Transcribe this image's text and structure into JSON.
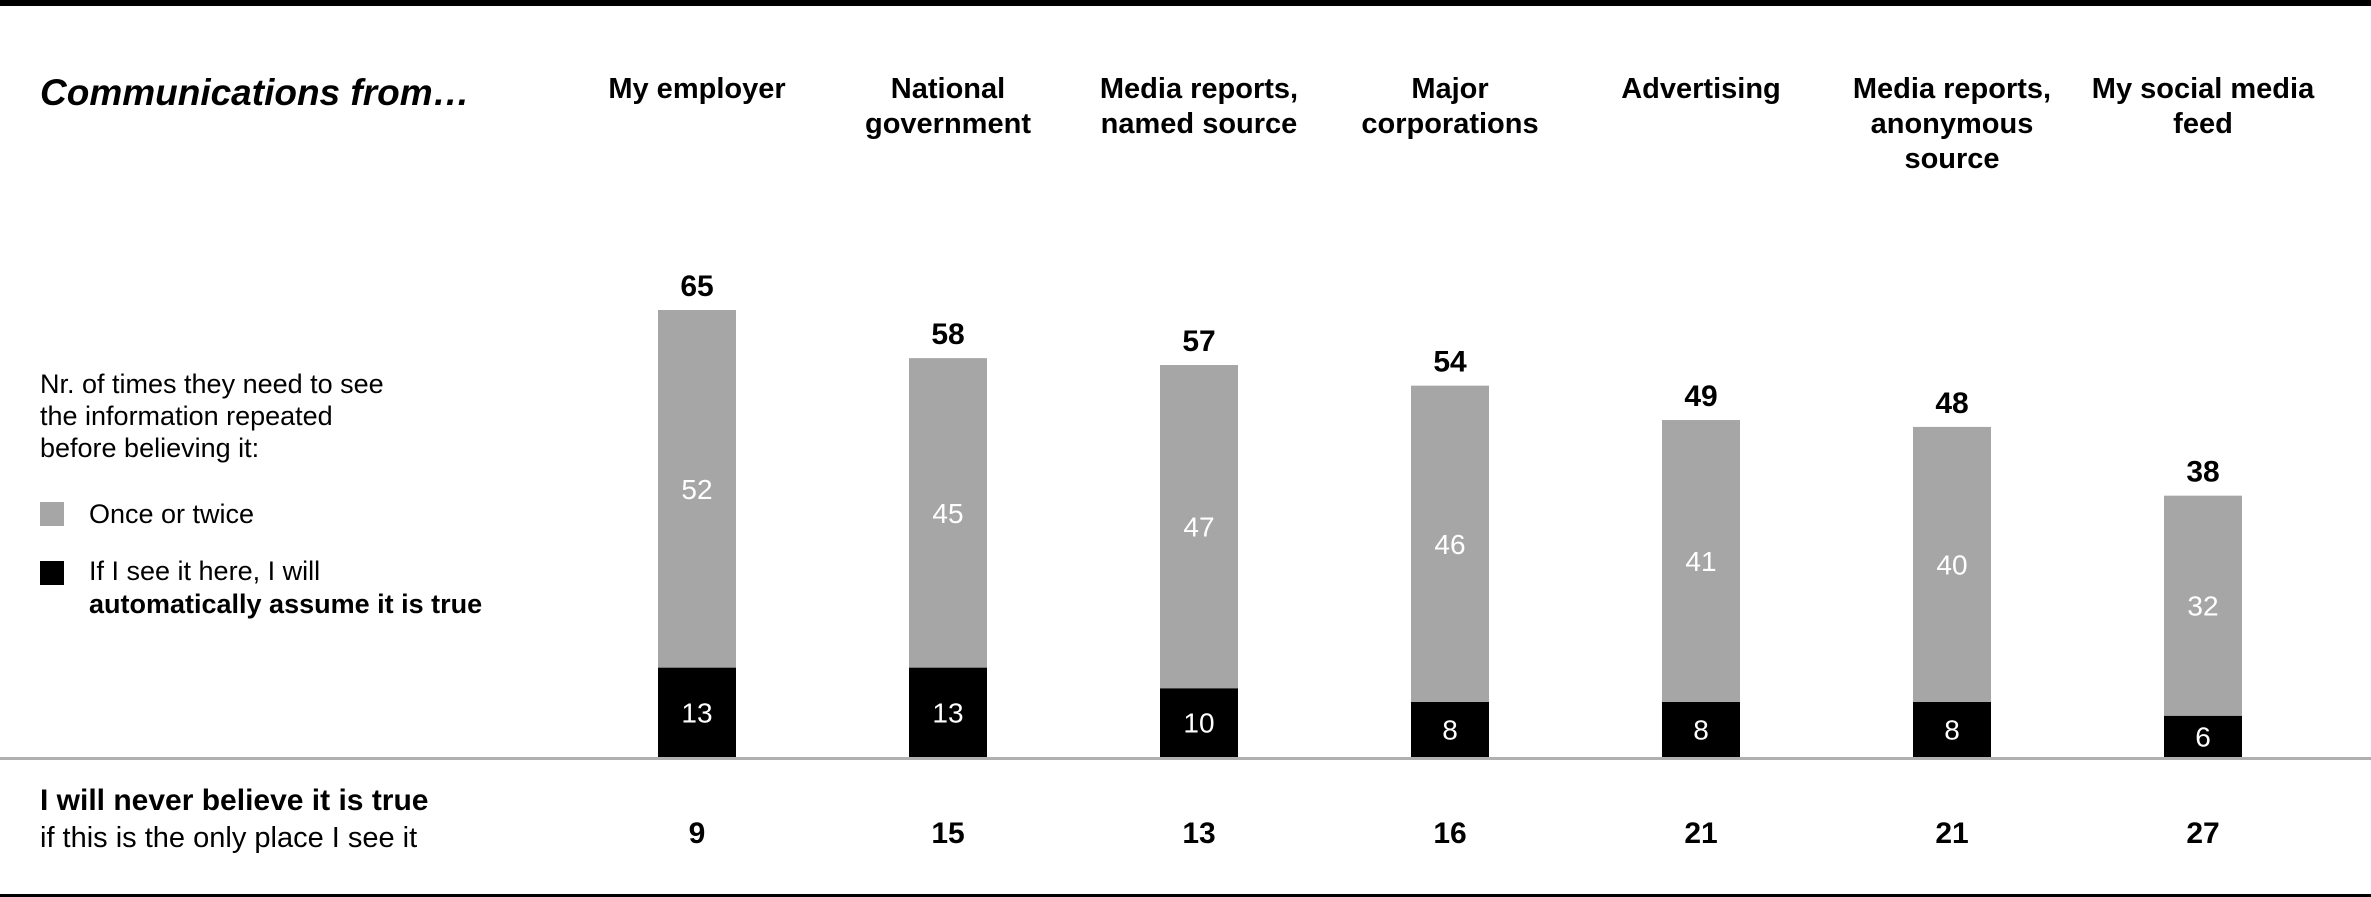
{
  "header": {
    "section_title": "Communications from…"
  },
  "legend": {
    "intro_lines": [
      "Nr. of times they need to see",
      "the information repeated",
      "before believing it:"
    ],
    "items": [
      {
        "label_lines": [
          "Once or twice"
        ],
        "bold_line": "",
        "color": "#a6a6a6"
      },
      {
        "label_lines": [
          "If I see it here, I will"
        ],
        "bold_line": "automatically assume it is true",
        "color": "#000000"
      }
    ]
  },
  "never_row": {
    "title": "I will never believe it is true",
    "subtitle": "if this is the only place I see it"
  },
  "colors": {
    "once_or_twice": "#a6a6a6",
    "automatically_true": "#000000",
    "inner_label": "#ffffff",
    "total_label": "#000000"
  },
  "chart_data": {
    "type": "bar",
    "stacked": true,
    "categories": [
      [
        "My employer"
      ],
      [
        "National",
        "government"
      ],
      [
        "Media reports,",
        "named source"
      ],
      [
        "Major",
        "corporations"
      ],
      [
        "Advertising"
      ],
      [
        "Media reports,",
        "anonymous",
        "source"
      ],
      [
        "My social media",
        "feed"
      ]
    ],
    "series": [
      {
        "name": "If I see it here, I will automatically assume it is true",
        "values": [
          13,
          13,
          10,
          8,
          8,
          8,
          6
        ]
      },
      {
        "name": "Once or twice",
        "values": [
          52,
          45,
          47,
          46,
          41,
          40,
          32
        ]
      }
    ],
    "totals": [
      65,
      58,
      57,
      54,
      49,
      48,
      38
    ],
    "never_believe": [
      9,
      15,
      13,
      16,
      21,
      21,
      27
    ],
    "ylim": [
      0,
      65
    ],
    "grid": false,
    "legend_position": "left"
  }
}
